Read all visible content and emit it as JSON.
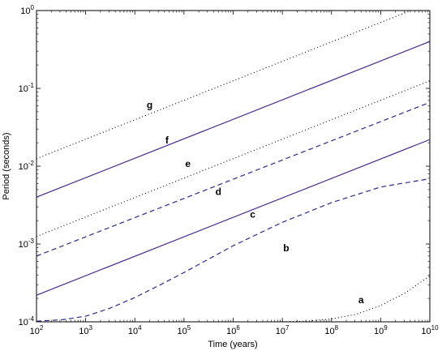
{
  "chart_data": {
    "type": "line",
    "title": "",
    "xlabel": "Time (years)",
    "ylabel": "Period (seconds)",
    "xscale": "log",
    "yscale": "log",
    "xlim": [
      100,
      10000000000
    ],
    "ylim": [
      0.0001,
      1
    ],
    "grid": false,
    "x_ticks": [
      {
        "base": "10",
        "exp": "2",
        "value": 100
      },
      {
        "base": "10",
        "exp": "3",
        "value": 1000
      },
      {
        "base": "10",
        "exp": "4",
        "value": 10000
      },
      {
        "base": "10",
        "exp": "5",
        "value": 100000
      },
      {
        "base": "10",
        "exp": "6",
        "value": 1000000
      },
      {
        "base": "10",
        "exp": "7",
        "value": 10000000
      },
      {
        "base": "10",
        "exp": "8",
        "value": 100000000
      },
      {
        "base": "10",
        "exp": "9",
        "value": 1000000000
      },
      {
        "base": "10",
        "exp": "10",
        "value": 10000000000
      }
    ],
    "y_ticks": [
      {
        "base": "10",
        "exp": "-4",
        "value": 0.0001
      },
      {
        "base": "10",
        "exp": "-3",
        "value": 0.001
      },
      {
        "base": "10",
        "exp": "-2",
        "value": 0.01
      },
      {
        "base": "10",
        "exp": "-1",
        "value": 0.1
      },
      {
        "base": "10",
        "exp": "0",
        "value": 1
      }
    ],
    "series": [
      {
        "label": "a",
        "style": "dotted",
        "color": "#000000",
        "label_at": [
          400000000,
          0.00019
        ],
        "points": [
          [
            100,
            0.0001
          ],
          [
            10000000,
            0.0001
          ],
          [
            31622777,
            0.000102
          ],
          [
            100000000,
            0.000109
          ],
          [
            316227766,
            0.000125
          ],
          [
            1000000000,
            0.000162
          ],
          [
            3162277660,
            0.000235
          ],
          [
            10000000000,
            0.00039
          ]
        ]
      },
      {
        "label": "b",
        "style": "dashed",
        "color": "#2a2a8c",
        "label_at": [
          12000000,
          0.00089
        ],
        "points": [
          [
            100,
            0.000102
          ],
          [
            316,
            0.000106
          ],
          [
            1000,
            0.000118
          ],
          [
            3162,
            0.00015
          ],
          [
            10000,
            0.000205
          ],
          [
            31623,
            0.000295
          ],
          [
            100000,
            0.00043
          ],
          [
            1000000,
            0.00095
          ],
          [
            10000000,
            0.0019
          ],
          [
            100000000,
            0.0034
          ],
          [
            1000000000,
            0.0054
          ],
          [
            10000000000,
            0.0069
          ]
        ]
      },
      {
        "label": "c",
        "style": "solid",
        "color": "#4b2a8c",
        "label_at": [
          2500000,
          0.0024
        ],
        "points": [
          [
            100,
            0.00022
          ],
          [
            10000000000,
            0.022
          ]
        ]
      },
      {
        "label": "d",
        "style": "dashed",
        "color": "#2a2a8c",
        "label_at": [
          500000,
          0.0047
        ],
        "points": [
          [
            100,
            0.0007
          ],
          [
            10000000000,
            0.066
          ]
        ]
      },
      {
        "label": "e",
        "style": "dotted",
        "color": "#000000",
        "label_at": [
          120000,
          0.0108
        ],
        "points": [
          [
            100,
            0.00125
          ],
          [
            10000000000,
            0.125
          ]
        ]
      },
      {
        "label": "f",
        "style": "solid",
        "color": "#4b2a8c",
        "label_at": [
          45000,
          0.0215
        ],
        "points": [
          [
            100,
            0.004
          ],
          [
            10000000000,
            0.4
          ]
        ]
      },
      {
        "label": "g",
        "style": "dotted",
        "color": "#000000",
        "label_at": [
          20000,
          0.061
        ],
        "points": [
          [
            100,
            0.0125
          ],
          [
            10000000000,
            1.25
          ]
        ]
      }
    ]
  }
}
